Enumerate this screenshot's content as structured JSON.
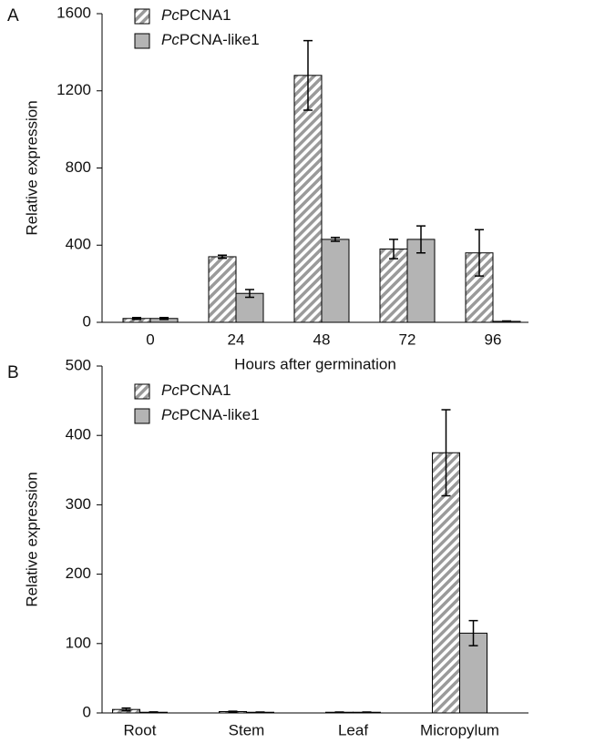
{
  "chart_data": [
    {
      "type": "bar",
      "panel_label": "A",
      "x_label": "Hours after germination",
      "y_label": "Relative expression",
      "categories": [
        "0",
        "24",
        "48",
        "72",
        "96"
      ],
      "series": [
        {
          "name": "PcPCNA1",
          "color": "#9a9a9a",
          "hatch": true,
          "values": [
            20,
            340,
            1280,
            380,
            360
          ],
          "errors": [
            5,
            8,
            180,
            50,
            120
          ]
        },
        {
          "name": "PcPCNA-like1",
          "color": "#b4b4b4",
          "hatch": false,
          "values": [
            20,
            150,
            430,
            430,
            5
          ],
          "errors": [
            5,
            20,
            10,
            70,
            2
          ]
        }
      ],
      "ylim": [
        0,
        1600
      ],
      "yticks": [
        0,
        400,
        800,
        1200,
        1600
      ]
    },
    {
      "type": "bar",
      "panel_label": "B",
      "y_label": "Relative expression",
      "categories": [
        "Root",
        "Stem",
        "Leaf",
        "Micropylum"
      ],
      "series": [
        {
          "name": "PcPCNA1",
          "color": "#9a9a9a",
          "hatch": true,
          "values": [
            5,
            2,
            1,
            375
          ],
          "errors": [
            2,
            0.5,
            0.3,
            62
          ]
        },
        {
          "name": "PcPCNA-like1",
          "color": "#b4b4b4",
          "hatch": false,
          "values": [
            1,
            1,
            1,
            115
          ],
          "errors": [
            0.5,
            0.3,
            0.3,
            18
          ]
        }
      ],
      "ylim": [
        0,
        500
      ],
      "yticks": [
        0,
        100,
        200,
        300,
        400,
        500
      ]
    }
  ]
}
